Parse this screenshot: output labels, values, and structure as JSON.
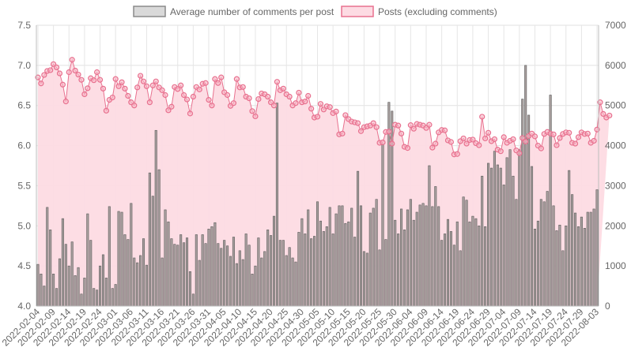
{
  "chart_data": {
    "type": "bar+line",
    "title": "",
    "legend": {
      "placement": "top-center",
      "entries": [
        {
          "name": "Average number of comments per post",
          "fill": "#d9d9d9",
          "stroke": "#8a8a8a"
        },
        {
          "name": "Posts (excluding comments)",
          "fill": "#fddbe3",
          "stroke": "#e8718f"
        }
      ]
    },
    "start_date": "2022-02-04",
    "end_date": "2022-08-03",
    "x_tick_labels": [
      "2022-02-04",
      "2022-02-09",
      "2022-02-14",
      "2022-02-19",
      "2022-02-24",
      "2022-03-01",
      "2022-03-06",
      "2022-03-11",
      "2022-03-16",
      "2022-03-21",
      "2022-03-26",
      "2022-03-31",
      "2022-04-05",
      "2022-04-10",
      "2022-04-15",
      "2022-04-20",
      "2022-04-25",
      "2022-04-30",
      "2022-05-05",
      "2022-05-10",
      "2022-05-15",
      "2022-05-20",
      "2022-05-25",
      "2022-05-30",
      "2022-06-04",
      "2022-06-09",
      "2022-06-14",
      "2022-06-19",
      "2022-06-24",
      "2022-06-29",
      "2022-07-04",
      "2022-07-09",
      "2022-07-14",
      "2022-07-19",
      "2022-07-24",
      "2022-07-29",
      "2022-08-03"
    ],
    "y_left": {
      "min": 4.0,
      "max": 7.5,
      "ticks": [
        "4.0",
        "4.5",
        "5.0",
        "5.5",
        "6.0",
        "6.5",
        "7.0",
        "7.5"
      ]
    },
    "y_right": {
      "min": 0,
      "max": 7000,
      "ticks": [
        "0",
        "1000",
        "2000",
        "3000",
        "4000",
        "5000",
        "6000",
        "7000"
      ]
    },
    "grid": true,
    "series": [
      {
        "name": "Average number of comments per post",
        "type": "bar",
        "axis": "left",
        "values": [
          4.52,
          4.4,
          4.25,
          5.23,
          4.95,
          4.4,
          4.22,
          4.59,
          5.09,
          4.77,
          4.5,
          4.8,
          4.38,
          4.48,
          4.15,
          4.35,
          5.15,
          4.82,
          4.22,
          4.2,
          4.5,
          4.64,
          4.35,
          5.24,
          4.22,
          4.27,
          5.18,
          5.17,
          4.89,
          4.83,
          5.28,
          4.6,
          4.54,
          4.63,
          4.84,
          4.51,
          5.66,
          5.37,
          6.19,
          5.7,
          4.6,
          5.2,
          5.05,
          4.84,
          4.77,
          4.76,
          4.89,
          4.79,
          4.85,
          4.43,
          4.15,
          4.89,
          4.57,
          4.89,
          4.78,
          4.96,
          4.99,
          5.04,
          4.78,
          4.72,
          4.82,
          4.75,
          4.62,
          4.86,
          4.53,
          4.69,
          4.58,
          4.9,
          4.76,
          4.4,
          4.5,
          4.85,
          4.6,
          4.68,
          4.95,
          4.88,
          5.12,
          6.53,
          4.82,
          4.82,
          4.63,
          4.73,
          4.6,
          4.55,
          4.92,
          5.09,
          4.9,
          5.2,
          4.84,
          4.87,
          5.3,
          5.06,
          4.93,
          4.99,
          5.23,
          4.9,
          5.15,
          5.25,
          5.25,
          5.03,
          5.05,
          5.22,
          4.86,
          5.68,
          5.25,
          4.68,
          4.66,
          5.16,
          5.22,
          5.33,
          4.7,
          6.02,
          4.83,
          6.54,
          6.43,
          5.07,
          4.9,
          5.21,
          4.95,
          5.2,
          5.33,
          5.07,
          5.17,
          5.26,
          5.28,
          5.25,
          5.75,
          5.24,
          5.49,
          5.24,
          4.82,
          4.9,
          5.08,
          4.93,
          4.76,
          5.05,
          4.69,
          5.36,
          5.32,
          5.05,
          5.12,
          5.09,
          5.0,
          5.62,
          4.99,
          5.78,
          5.72,
          5.93,
          5.76,
          5.72,
          5.51,
          5.85,
          5.95,
          5.62,
          5.33,
          5.95,
          6.58,
          7.0,
          6.38,
          5.74,
          4.96,
          5.06,
          5.33,
          5.3,
          5.43,
          6.63,
          5.25,
          4.94,
          5.01,
          4.69,
          5.0,
          5.69,
          5.39,
          5.16,
          4.99,
          5.11,
          4.97,
          5.17,
          5.17,
          5.21,
          5.45
        ]
      },
      {
        "name": "Posts (excluding comments)",
        "type": "line-area",
        "axis": "right",
        "values": [
          5700,
          5550,
          5760,
          5860,
          5880,
          6030,
          5950,
          5800,
          5520,
          5100,
          5830,
          6140,
          5870,
          5770,
          5640,
          5280,
          5430,
          5680,
          5630,
          5830,
          5640,
          5420,
          4870,
          5140,
          5200,
          5660,
          5480,
          5580,
          5420,
          5240,
          5080,
          5000,
          5450,
          5740,
          5600,
          5480,
          5080,
          5500,
          5600,
          5450,
          5380,
          5260,
          4880,
          4970,
          5460,
          5410,
          5500,
          5260,
          5150,
          4800,
          5220,
          5460,
          5400,
          5540,
          5560,
          5140,
          5000,
          5660,
          5560,
          5700,
          5330,
          5260,
          4990,
          5060,
          5660,
          5450,
          5460,
          5220,
          5180,
          4860,
          4730,
          5160,
          5300,
          5280,
          5220,
          5080,
          5000,
          5590,
          5380,
          5420,
          5280,
          5220,
          5000,
          5060,
          5320,
          5080,
          5100,
          5240,
          4920,
          4700,
          4720,
          5040,
          4900,
          4980,
          4960,
          4810,
          4850,
          4280,
          4300,
          4760,
          4660,
          4600,
          4580,
          4560,
          4360,
          4460,
          4480,
          4500,
          4560,
          4460,
          4070,
          4080,
          4340,
          4350,
          4050,
          4520,
          4500,
          4300,
          3970,
          3940,
          4510,
          4420,
          4540,
          4520,
          4500,
          4440,
          4520,
          3950,
          4050,
          4330,
          4390,
          4380,
          4130,
          4090,
          3780,
          3790,
          4110,
          4180,
          4050,
          4140,
          4150,
          4060,
          4010,
          4720,
          4180,
          4320,
          4110,
          4160,
          3900,
          3860,
          4210,
          4070,
          4120,
          4160,
          3880,
          3810,
          4190,
          4100,
          4240,
          4300,
          4230,
          4000,
          3930,
          4290,
          4340,
          4300,
          4280,
          4010,
          4190,
          4290,
          4330,
          4320,
          4070,
          4050,
          4210,
          4330,
          4290,
          4300,
          4070,
          4120,
          4400,
          5080,
          4790,
          4700,
          4750
        ]
      }
    ]
  }
}
